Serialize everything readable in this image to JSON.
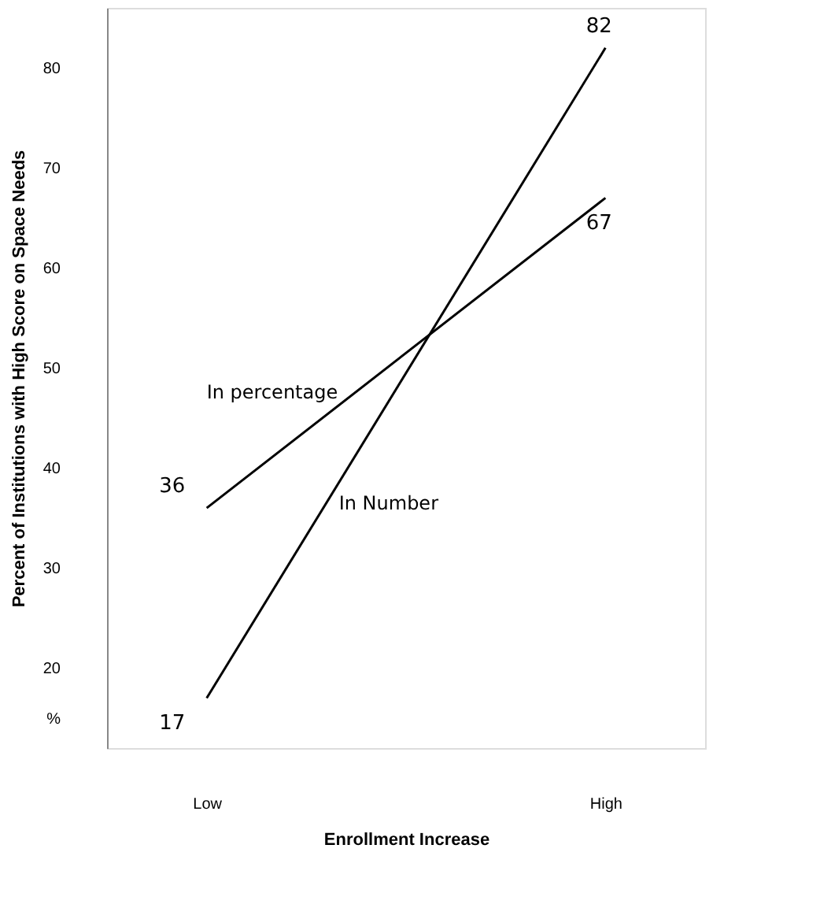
{
  "chart_data": {
    "type": "line",
    "xlabel": "Enrollment Increase",
    "ylabel": "Percent of Institutions with High Score on Space Needs",
    "categories": [
      "Low",
      "High"
    ],
    "series": [
      {
        "name": "In percentage",
        "color": "#000000",
        "values": [
          36,
          67
        ]
      },
      {
        "name": "In Number",
        "color": "#000000",
        "values": [
          17,
          82
        ]
      }
    ],
    "ylim": [
      12,
      86
    ],
    "yticks": [
      {
        "value": 15,
        "label": "%"
      },
      20,
      30,
      40,
      50,
      60,
      70,
      80
    ],
    "data_labels": true,
    "grid": false,
    "legend": false,
    "marker": "none",
    "line_style": "solid"
  }
}
